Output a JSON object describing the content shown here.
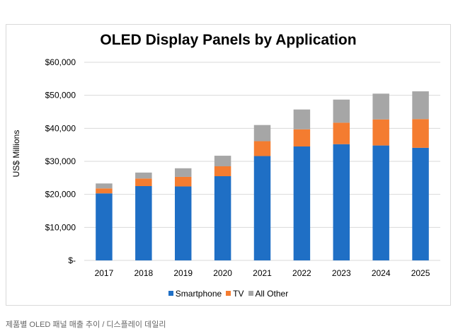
{
  "chart_data": {
    "type": "bar",
    "stacked": true,
    "title": "OLED Display Panels by Application",
    "xlabel": "",
    "ylabel": "US$ Millions",
    "ylim": [
      0,
      60000
    ],
    "yticks": [
      0,
      10000,
      20000,
      30000,
      40000,
      50000,
      60000
    ],
    "ytick_labels": [
      "$-",
      "$10,000",
      "$20,000",
      "$30,000",
      "$40,000",
      "$50,000",
      "$60,000"
    ],
    "categories": [
      "2017",
      "2018",
      "2019",
      "2020",
      "2021",
      "2022",
      "2023",
      "2024",
      "2025"
    ],
    "series": [
      {
        "name": "Smartphone",
        "color": "#1f6fc5",
        "values": [
          20300,
          22500,
          22400,
          25500,
          31600,
          34500,
          35200,
          34800,
          34100
        ]
      },
      {
        "name": "TV",
        "color": "#f47c30",
        "values": [
          1500,
          2300,
          2900,
          3000,
          4500,
          5200,
          6500,
          7900,
          8700
        ]
      },
      {
        "name": "All Other",
        "color": "#a6a6a6",
        "values": [
          1500,
          1800,
          2600,
          3200,
          4900,
          6000,
          7000,
          7800,
          8400
        ]
      }
    ],
    "grid": true,
    "legend": "bottom"
  },
  "caption": "제품별 OLED 패널 매출 추이 / 디스플레이 데일리"
}
